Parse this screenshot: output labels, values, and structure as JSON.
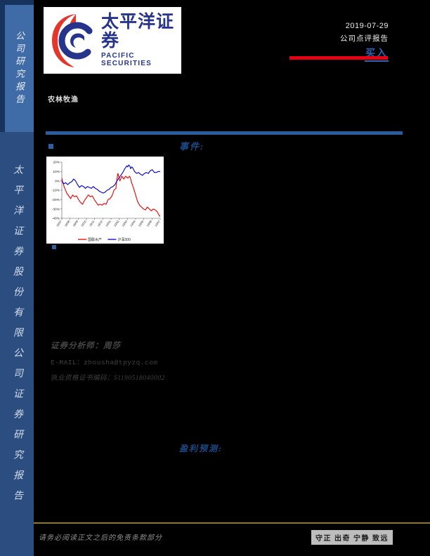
{
  "sidebar": {
    "top_label": "公司研究报告",
    "bottom_label": "太平洋证券股份有限公司证券研究报告"
  },
  "header": {
    "logo": {
      "cn": "太平洋证券",
      "en": "PACIFIC SECURITIES"
    },
    "sector": "农林牧渔",
    "date": "2019-07-29",
    "report_type": "公司点评报告",
    "rating": "买入"
  },
  "sections": {
    "event_label": "事件:",
    "profit_label": "盈利预测:"
  },
  "analyst": {
    "name_line": "证券分析师：周莎",
    "email_line": "E-MAIL：zhousha@tpyzq.com",
    "license_line": "执业资格证书编码：S1190518040002"
  },
  "footer": {
    "disclaimer": "请务必阅读正文之后的免责条款部分",
    "slogan": "守正 出奇 宁静 致远"
  },
  "colors": {
    "accent_red": "#e60013",
    "rating_blue": "#2e63b5",
    "label_blue": "#1c4a87",
    "divider_blue": "#2b5c9e",
    "footer_gold": "#8b7a35"
  },
  "chart_data": {
    "type": "line",
    "title": "",
    "xlabel": "",
    "ylabel": "",
    "ylim": [
      -40,
      20
    ],
    "yticks": [
      "20%",
      "10%",
      "0%",
      "-10%",
      "-20%",
      "-30%",
      "-40%"
    ],
    "x_ticklabels": [
      "18/07",
      "18/08",
      "18/09",
      "18/10",
      "18/11",
      "18/12",
      "19/01",
      "19/02",
      "19/03",
      "19/04",
      "19/05",
      "19/06",
      "19/07"
    ],
    "grid": false,
    "legend_position": "bottom",
    "series": [
      {
        "name": "国联水产",
        "color": "#ee0000",
        "points": [
          [
            0,
            3
          ],
          [
            0.01,
            -2
          ],
          [
            0.03,
            -8
          ],
          [
            0.05,
            -13
          ],
          [
            0.07,
            -16
          ],
          [
            0.09,
            -19
          ],
          [
            0.11,
            -15
          ],
          [
            0.13,
            -17
          ],
          [
            0.15,
            -16
          ],
          [
            0.17,
            -20
          ],
          [
            0.19,
            -23
          ],
          [
            0.21,
            -25
          ],
          [
            0.23,
            -21
          ],
          [
            0.25,
            -18
          ],
          [
            0.27,
            -15
          ],
          [
            0.29,
            -17
          ],
          [
            0.31,
            -16
          ],
          [
            0.33,
            -20
          ],
          [
            0.35,
            -23
          ],
          [
            0.37,
            -26
          ],
          [
            0.39,
            -25
          ],
          [
            0.41,
            -26
          ],
          [
            0.43,
            -24
          ],
          [
            0.45,
            -25
          ],
          [
            0.47,
            -20
          ],
          [
            0.49,
            -19
          ],
          [
            0.51,
            -16
          ],
          [
            0.53,
            -10
          ],
          [
            0.55,
            -8
          ],
          [
            0.56,
            2
          ],
          [
            0.57,
            8
          ],
          [
            0.58,
            4
          ],
          [
            0.59,
            0
          ],
          [
            0.61,
            5
          ],
          [
            0.63,
            2
          ],
          [
            0.65,
            5
          ],
          [
            0.67,
            3
          ],
          [
            0.69,
            5
          ],
          [
            0.7,
            2
          ],
          [
            0.71,
            -2
          ],
          [
            0.73,
            -8
          ],
          [
            0.75,
            -15
          ],
          [
            0.77,
            -22
          ],
          [
            0.79,
            -26
          ],
          [
            0.81,
            -28
          ],
          [
            0.83,
            -30
          ],
          [
            0.85,
            -31
          ],
          [
            0.87,
            -28
          ],
          [
            0.89,
            -30
          ],
          [
            0.91,
            -32
          ],
          [
            0.93,
            -30
          ],
          [
            0.95,
            -31
          ],
          [
            0.97,
            -33
          ],
          [
            0.99,
            -37
          ],
          [
            1,
            -38
          ]
        ]
      },
      {
        "name": "沪深300",
        "color": "#0000cc",
        "points": [
          [
            0,
            0
          ],
          [
            0.02,
            -3
          ],
          [
            0.04,
            -2
          ],
          [
            0.06,
            -4
          ],
          [
            0.08,
            -2
          ],
          [
            0.1,
            -1
          ],
          [
            0.12,
            2
          ],
          [
            0.14,
            0
          ],
          [
            0.16,
            -4
          ],
          [
            0.18,
            -7
          ],
          [
            0.2,
            -5
          ],
          [
            0.22,
            -6
          ],
          [
            0.24,
            -8
          ],
          [
            0.26,
            -6
          ],
          [
            0.28,
            -7
          ],
          [
            0.3,
            -8
          ],
          [
            0.32,
            -6
          ],
          [
            0.34,
            -8
          ],
          [
            0.36,
            -9
          ],
          [
            0.38,
            -11
          ],
          [
            0.4,
            -12
          ],
          [
            0.42,
            -13
          ],
          [
            0.44,
            -12
          ],
          [
            0.46,
            -10
          ],
          [
            0.48,
            -9
          ],
          [
            0.5,
            -7
          ],
          [
            0.52,
            -6
          ],
          [
            0.54,
            -4
          ],
          [
            0.56,
            0
          ],
          [
            0.58,
            3
          ],
          [
            0.6,
            6
          ],
          [
            0.62,
            9
          ],
          [
            0.64,
            13
          ],
          [
            0.66,
            16
          ],
          [
            0.67,
            15
          ],
          [
            0.68,
            17
          ],
          [
            0.69,
            16
          ],
          [
            0.7,
            13
          ],
          [
            0.71,
            15
          ],
          [
            0.72,
            14
          ],
          [
            0.74,
            10
          ],
          [
            0.76,
            8
          ],
          [
            0.78,
            9
          ],
          [
            0.8,
            7
          ],
          [
            0.82,
            6
          ],
          [
            0.84,
            8
          ],
          [
            0.86,
            9
          ],
          [
            0.88,
            8
          ],
          [
            0.9,
            11
          ],
          [
            0.92,
            12
          ],
          [
            0.94,
            9
          ],
          [
            0.96,
            9
          ],
          [
            0.98,
            10
          ],
          [
            1,
            10
          ]
        ]
      }
    ]
  }
}
